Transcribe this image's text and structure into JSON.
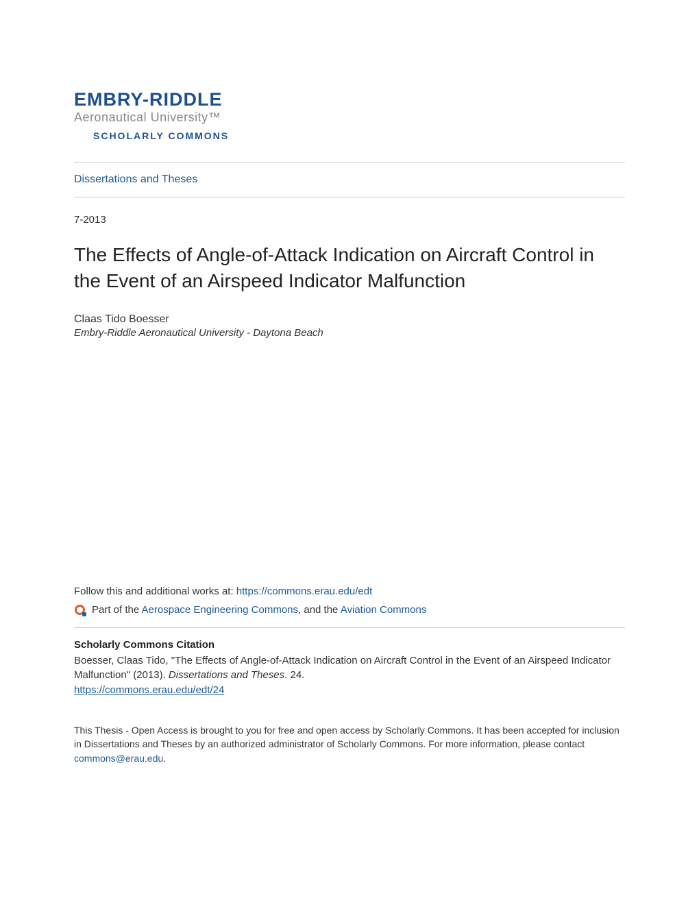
{
  "logo": {
    "line1": "EMBRY-RIDDLE",
    "line2": "Aeronautical University™",
    "line3": "SCHOLARLY COMMONS"
  },
  "breadcrumb": {
    "label": "Dissertations and Theses"
  },
  "date": "7-2013",
  "title": "The Effects of Angle-of-Attack Indication on Aircraft Control in the Event of an Airspeed Indicator Malfunction",
  "author": {
    "name": "Claas Tido Boesser",
    "affiliation": "Embry-Riddle Aeronautical University - Daytona Beach"
  },
  "follow": {
    "prefix": "Follow this and additional works at: ",
    "url": "https://commons.erau.edu/edt"
  },
  "part_of": {
    "prefix": "Part of the ",
    "link1": "Aerospace Engineering Commons",
    "middle": ", and the ",
    "link2": "Aviation Commons"
  },
  "citation": {
    "heading": "Scholarly Commons Citation",
    "text_part1": "Boesser, Claas Tido, \"The Effects of Angle-of-Attack Indication on Aircraft Control in the Event of an Airspeed Indicator Malfunction\" (2013). ",
    "text_italic": "Dissertations and Theses",
    "text_part2": ". 24.",
    "url": "https://commons.erau.edu/edt/24"
  },
  "footer": {
    "text_part1": "This Thesis - Open Access is brought to you for free and open access by Scholarly Commons. It has been accepted for inclusion in Dissertations and Theses by an authorized administrator of Scholarly Commons. For more information, please contact ",
    "email": "commons@erau.edu",
    "text_part2": "."
  },
  "colors": {
    "link_color": "#1e5a96",
    "logo_blue": "#1e4f8f",
    "logo_gray": "#888888",
    "divider": "#cccccc",
    "text": "#333333",
    "background": "#ffffff"
  },
  "typography": {
    "title_fontsize": 28,
    "body_fontsize": 15,
    "footer_fontsize": 14,
    "font_family_body": "Arial, Helvetica, sans-serif"
  }
}
